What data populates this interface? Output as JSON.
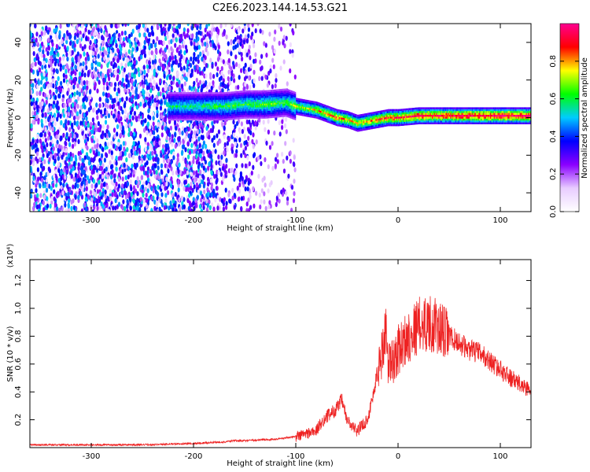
{
  "title": "C2E6.2023.144.14.53.G21",
  "chart_data": [
    {
      "type": "heatmap",
      "xlabel": "Height of straight line (km)",
      "ylabel": "Frequency (Hz)",
      "xlim": [
        -360,
        130
      ],
      "ylim": [
        -50,
        50
      ],
      "xticks": [
        -300,
        -200,
        -100,
        0,
        100
      ],
      "yticks": [
        -40,
        -20,
        0,
        20,
        40
      ],
      "colorbar": {
        "label": "Normalized spectral amplitude",
        "range": [
          0,
          1
        ],
        "ticks": [
          0.0,
          0.2,
          0.4,
          0.6,
          0.8
        ],
        "colors": [
          "#ffffff",
          "#e8ccff",
          "#8a00ff",
          "#0000ff",
          "#00ccff",
          "#00ff00",
          "#ffff00",
          "#ff0000",
          "#ff0090"
        ]
      },
      "signal_band": {
        "x": [
          -225,
          -200,
          -170,
          -150,
          -130,
          -110,
          -100,
          -90,
          -80,
          -70,
          -60,
          -50,
          -40,
          -30,
          -20,
          -10,
          0,
          20,
          50,
          80,
          100,
          130
        ],
        "freq": [
          6,
          6,
          6,
          7,
          7,
          8,
          6,
          5,
          4,
          2,
          0,
          -1,
          -3,
          -2,
          -1,
          0,
          0,
          1,
          1,
          1,
          1,
          1
        ],
        "amplitude": [
          0.45,
          0.45,
          0.5,
          0.5,
          0.55,
          0.5,
          0.6,
          0.6,
          0.65,
          0.7,
          0.75,
          0.7,
          0.65,
          0.7,
          0.75,
          0.8,
          0.8,
          0.85,
          0.85,
          0.9,
          0.9,
          0.9
        ]
      },
      "noise_regions": [
        {
          "x": [
            -360,
            -180
          ],
          "density": 0.6
        },
        {
          "x": [
            -180,
            -140
          ],
          "density": 0.35
        },
        {
          "x": [
            -140,
            -100
          ],
          "density": 0.15
        }
      ]
    },
    {
      "type": "line",
      "xlabel": "Height of straight line (km)",
      "ylabel": "SNR (10 * v/v)",
      "yscale_label": "(x10⁴)",
      "xlim": [
        -360,
        130
      ],
      "ylim": [
        0,
        1.35
      ],
      "xticks": [
        -300,
        -200,
        -100,
        0,
        100
      ],
      "yticks": [
        0.2,
        0.4,
        0.6,
        0.8,
        1.0,
        1.2
      ],
      "series": [
        {
          "color": "#ee2222",
          "x": [
            -360,
            -300,
            -250,
            -200,
            -170,
            -160,
            -150,
            -120,
            -100,
            -90,
            -80,
            -75,
            -70,
            -60,
            -55,
            -50,
            -45,
            -40,
            -30,
            -25,
            -20,
            -15,
            -12,
            -10,
            -5,
            0,
            10,
            20,
            30,
            40,
            50,
            60,
            70,
            80,
            90,
            100,
            110,
            120,
            130
          ],
          "y": [
            0.02,
            0.02,
            0.02,
            0.03,
            0.04,
            0.05,
            0.05,
            0.06,
            0.08,
            0.1,
            0.12,
            0.18,
            0.22,
            0.28,
            0.34,
            0.2,
            0.15,
            0.12,
            0.2,
            0.35,
            0.55,
            0.7,
            0.9,
            0.6,
            0.62,
            0.7,
            0.8,
            0.88,
            0.9,
            0.85,
            0.8,
            0.75,
            0.7,
            0.68,
            0.62,
            0.56,
            0.5,
            0.45,
            0.41
          ]
        }
      ]
    }
  ]
}
